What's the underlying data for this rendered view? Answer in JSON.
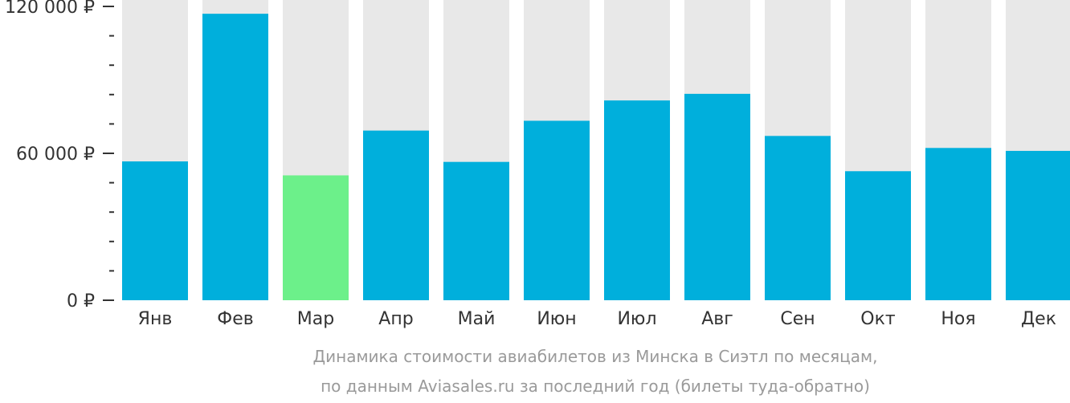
{
  "chart_data": {
    "type": "bar",
    "categories": [
      "Янв",
      "Фев",
      "Мар",
      "Апр",
      "Май",
      "Июн",
      "Июл",
      "Авг",
      "Сен",
      "Окт",
      "Ноя",
      "Дек"
    ],
    "values": [
      56700,
      117000,
      51000,
      69300,
      56500,
      73300,
      81600,
      84300,
      67100,
      52700,
      62200,
      61000
    ],
    "ylim": [
      0,
      120000
    ],
    "yticks": [
      {
        "value": 0,
        "label": "0 ₽"
      },
      {
        "value": 60000,
        "label": "60 000 ₽"
      },
      {
        "value": 120000,
        "label": "120 000 ₽"
      }
    ],
    "minor_tick_step": 12000,
    "highlight_index": 2,
    "colors": {
      "bar": "#00afdc",
      "highlight": "#6cf08a",
      "background_column": "#e8e8e8",
      "axis": "#333333",
      "caption": "#9a9a9a"
    },
    "caption": [
      "Динамика стоимости авиабилетов из Минска в Сиэтл по месяцам,",
      "по данным Aviasales.ru за последний год (билеты туда-обратно)"
    ],
    "grid": false,
    "legend": "none"
  }
}
